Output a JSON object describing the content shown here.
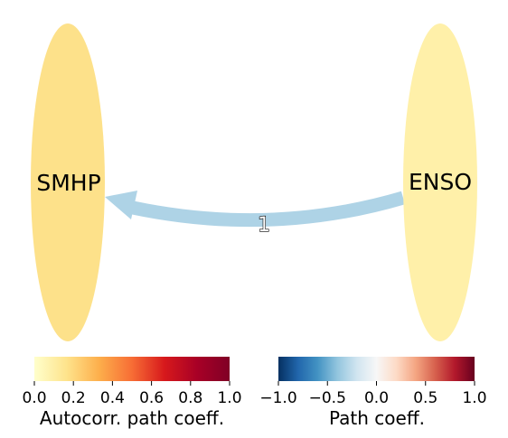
{
  "nodes": [
    {
      "id": "SMHP",
      "label": "SMHP",
      "color": "#fde18a"
    },
    {
      "id": "ENSO",
      "label": "ENSO",
      "color": "#fff0a9"
    }
  ],
  "edges": [
    {
      "from": "ENSO",
      "to": "SMHP",
      "label": "1",
      "color": "#aed3e6"
    }
  ],
  "colorbars": [
    {
      "title": "Autocorr. path coeff.",
      "ticks": [
        "0.0",
        "0.2",
        "0.4",
        "0.6",
        "0.8",
        "1.0"
      ],
      "colors": [
        "#ffffcc",
        "#fee38b",
        "#fdae4b",
        "#f76d35",
        "#d7191c",
        "#a80026",
        "#800026"
      ]
    },
    {
      "title": "Path coeff.",
      "ticks": [
        "−1.0",
        "−0.5",
        "0.0",
        "0.5",
        "1.0"
      ],
      "colors": [
        "#053061",
        "#2166ac",
        "#4393c3",
        "#92c5de",
        "#d1e5f0",
        "#f7f7f7",
        "#fddbc7",
        "#f4a582",
        "#d6604d",
        "#b2182b",
        "#67001f"
      ]
    }
  ]
}
